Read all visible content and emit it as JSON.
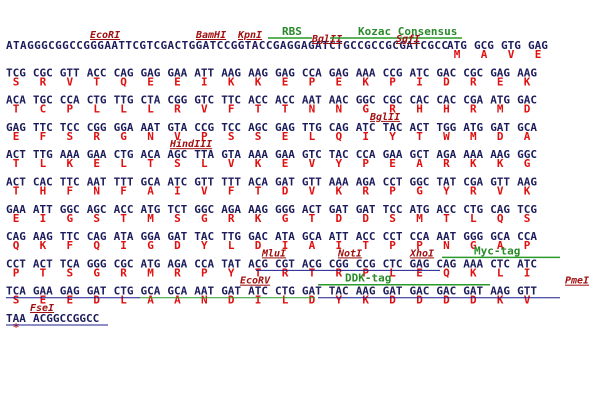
{
  "rows": [
    {
      "prefix": "ATAGGGCGGCCGGGAATTCGTCGACTGGATCCGGTACCGAGGAGATCTGCCGCCGCGATCGCC",
      "codons": [
        "ATG",
        "GCG",
        "GTG",
        "GAG"
      ],
      "protein": [
        "M",
        "A",
        "V",
        "E"
      ]
    },
    {
      "codons": [
        "TCG",
        "CGC",
        "GTT",
        "ACC",
        "CAG",
        "GAG",
        "GAA",
        "ATT",
        "AAG",
        "AAG",
        "GAG",
        "CCA",
        "GAG",
        "AAA",
        "CCG",
        "ATC",
        "GAC",
        "CGC",
        "GAG",
        "AAG"
      ],
      "protein": [
        "S",
        "R",
        "V",
        "T",
        "Q",
        "E",
        "E",
        "I",
        "K",
        "K",
        "E",
        "P",
        "E",
        "K",
        "P",
        "I",
        "D",
        "R",
        "E",
        "K"
      ]
    },
    {
      "codons": [
        "ACA",
        "TGC",
        "CCA",
        "CTG",
        "TTG",
        "CTA",
        "CGG",
        "GTC",
        "TTC",
        "ACC",
        "ACC",
        "AAT",
        "AAC",
        "GGC",
        "CGC",
        "CAC",
        "CAC",
        "CGA",
        "ATG",
        "GAC"
      ],
      "protein": [
        "T",
        "C",
        "P",
        "L",
        "L",
        "L",
        "R",
        "V",
        "F",
        "T",
        "T",
        "N",
        "N",
        "G",
        "R",
        "H",
        "H",
        "R",
        "M",
        "D"
      ]
    },
    {
      "codons": [
        "GAG",
        "TTC",
        "TCC",
        "CGG",
        "GGA",
        "AAT",
        "GTA",
        "CCG",
        "TCC",
        "AGC",
        "GAG",
        "TTG",
        "CAG",
        "ATC",
        "TAC",
        "ACT",
        "TGG",
        "ATG",
        "GAT",
        "GCA"
      ],
      "protein": [
        "E",
        "F",
        "S",
        "R",
        "G",
        "N",
        "V",
        "P",
        "S",
        "S",
        "E",
        "L",
        "Q",
        "I",
        "Y",
        "T",
        "W",
        "M",
        "D",
        "A"
      ]
    },
    {
      "codons": [
        "ACT",
        "TTG",
        "AAA",
        "GAA",
        "CTG",
        "ACA",
        "AGC",
        "TTA",
        "GTA",
        "AAA",
        "GAA",
        "GTC",
        "TAC",
        "CCA",
        "GAA",
        "GCT",
        "AGA",
        "AAA",
        "AAG",
        "GGC"
      ],
      "protein": [
        "T",
        "L",
        "K",
        "E",
        "L",
        "T",
        "S",
        "L",
        "V",
        "K",
        "E",
        "V",
        "Y",
        "P",
        "E",
        "A",
        "R",
        "K",
        "K",
        "G"
      ]
    },
    {
      "codons": [
        "ACT",
        "CAC",
        "TTC",
        "AAT",
        "TTT",
        "GCA",
        "ATC",
        "GTT",
        "TTT",
        "ACA",
        "GAT",
        "GTT",
        "AAA",
        "AGA",
        "CCT",
        "GGC",
        "TAT",
        "CGA",
        "GTT",
        "AAG"
      ],
      "protein": [
        "T",
        "H",
        "F",
        "N",
        "F",
        "A",
        "I",
        "V",
        "F",
        "T",
        "D",
        "V",
        "K",
        "R",
        "P",
        "G",
        "Y",
        "R",
        "V",
        "K"
      ]
    },
    {
      "codons": [
        "GAA",
        "ATT",
        "GGC",
        "AGC",
        "ACC",
        "ATG",
        "TCT",
        "GGC",
        "AGA",
        "AAG",
        "GGG",
        "ACT",
        "GAT",
        "GAT",
        "TCC",
        "ATG",
        "ACC",
        "CTG",
        "CAG",
        "TCG"
      ],
      "protein": [
        "E",
        "I",
        "G",
        "S",
        "T",
        "M",
        "S",
        "G",
        "R",
        "K",
        "G",
        "T",
        "D",
        "D",
        "S",
        "M",
        "T",
        "L",
        "Q",
        "S"
      ]
    },
    {
      "codons": [
        "CAG",
        "AAG",
        "TTC",
        "CAG",
        "ATA",
        "GGA",
        "GAT",
        "TAC",
        "TTG",
        "GAC",
        "ATA",
        "GCA",
        "ATT",
        "ACC",
        "CCT",
        "CCA",
        "AAT",
        "GGG",
        "GCA",
        "CCA"
      ],
      "protein": [
        "Q",
        "K",
        "F",
        "Q",
        "I",
        "G",
        "D",
        "Y",
        "L",
        "D",
        "I",
        "A",
        "I",
        "T",
        "P",
        "P",
        "N",
        "G",
        "A",
        "P"
      ]
    },
    {
      "codons": [
        "CCT",
        "ACT",
        "TCA",
        "GGG",
        "CGC",
        "ATG",
        "AGA",
        "CCA",
        "TAT",
        "ACG",
        "CGT",
        "ACG",
        "CGG",
        "CCG",
        "CTC",
        "GAG",
        "CAG",
        "AAA",
        "CTC",
        "ATC"
      ],
      "protein": [
        "P",
        "T",
        "S",
        "G",
        "R",
        "M",
        "R",
        "P",
        "Y",
        "T",
        "R",
        "T",
        "R",
        "P",
        "L",
        "E",
        "Q",
        "K",
        "L",
        "I"
      ]
    },
    {
      "codons": [
        "TCA",
        "GAA",
        "GAG",
        "GAT",
        "CTG",
        "GCA",
        "GCA",
        "AAT",
        "GAT",
        "ATC",
        "CTG",
        "GAT",
        "TAC",
        "AAG",
        "GAT",
        "GAC",
        "GAC",
        "GAT",
        "AAG",
        "GTT"
      ],
      "protein": [
        "S",
        "E",
        "E",
        "D",
        "L",
        "A",
        "A",
        "N",
        "D",
        "I",
        "L",
        "D",
        "Y",
        "K",
        "D",
        "D",
        "D",
        "D",
        "K",
        "V"
      ]
    },
    {
      "codons": [
        "TAA"
      ],
      "suffix": "ACGGCCGGCC",
      "protein": [
        "*"
      ]
    }
  ],
  "sites": [
    {
      "name": "EcoRI",
      "kind": "enzyme"
    },
    {
      "name": "BamHI",
      "kind": "enzyme"
    },
    {
      "name": "KpnI",
      "kind": "enzyme"
    },
    {
      "name": "RBS",
      "kind": "feature"
    },
    {
      "name": "BglII",
      "kind": "enzyme"
    },
    {
      "name": "Kozac Consensus",
      "kind": "feature"
    },
    {
      "name": "SgfI",
      "kind": "enzyme"
    },
    {
      "name": "BglII",
      "kind": "enzyme"
    },
    {
      "name": "HindIII",
      "kind": "enzyme"
    },
    {
      "name": "MluI",
      "kind": "enzyme"
    },
    {
      "name": "NotI",
      "kind": "enzyme"
    },
    {
      "name": "XhoI",
      "kind": "enzyme"
    },
    {
      "name": "Myc-tag",
      "kind": "feature"
    },
    {
      "name": "EcoRV",
      "kind": "enzyme"
    },
    {
      "name": "DDK-tag",
      "kind": "feature"
    },
    {
      "name": "PmeI",
      "kind": "enzyme"
    },
    {
      "name": "FseI",
      "kind": "enzyme"
    }
  ]
}
